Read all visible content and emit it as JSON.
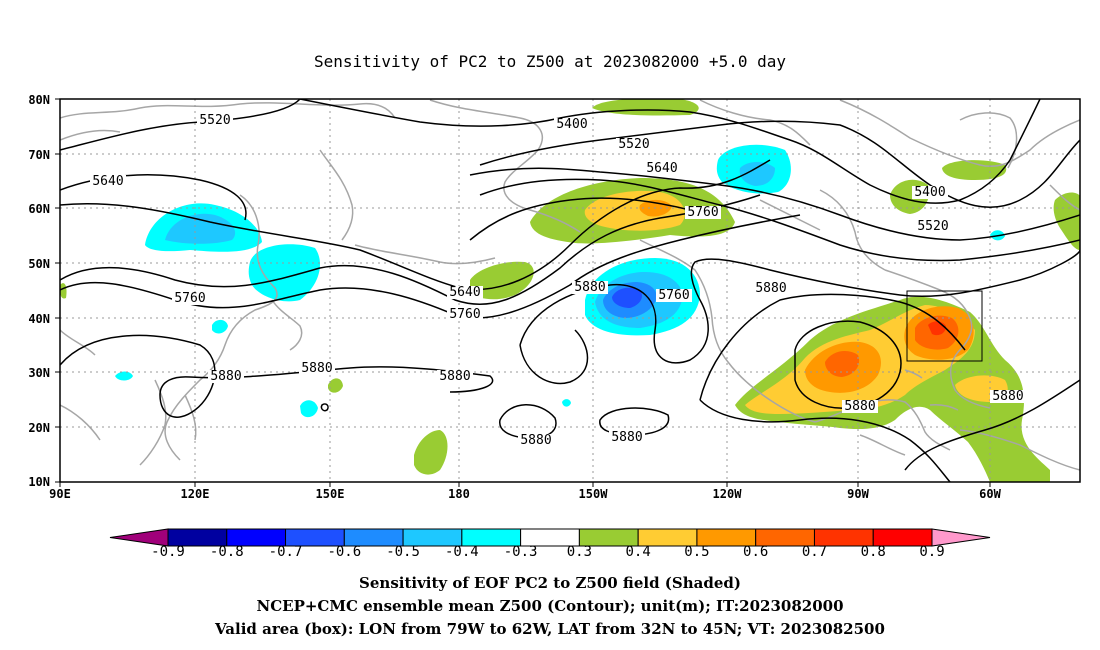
{
  "title": "Sensitivity of PC2 to Z500 at 2023082000 +5.0 day",
  "axes": {
    "lat_labels": [
      "80N",
      "70N",
      "60N",
      "50N",
      "40N",
      "30N",
      "20N",
      "10N"
    ],
    "lon_labels": [
      "90E",
      "120E",
      "150E",
      "180",
      "150W",
      "120W",
      "90W",
      "60W"
    ]
  },
  "contour_labels": [
    "5520",
    "5400",
    "5520",
    "5640",
    "5640",
    "5760",
    "5400",
    "5520",
    "5760",
    "5640",
    "5760",
    "5880",
    "5760",
    "5880",
    "5880",
    "5880",
    "5880",
    "5880",
    "5880",
    "5880",
    "5880"
  ],
  "colorbar": {
    "levels": [
      "-0.9",
      "-0.8",
      "-0.7",
      "-0.6",
      "-0.5",
      "-0.4",
      "-0.3",
      "0.3",
      "0.4",
      "0.5",
      "0.6",
      "0.7",
      "0.8",
      "0.9"
    ],
    "colors": [
      "#a0007a",
      "#0000a0",
      "#0000ff",
      "#1e50ff",
      "#1e8cff",
      "#1ec8ff",
      "#00ffff",
      "#ffffff",
      "#99cc33",
      "#ffcc33",
      "#ff9900",
      "#ff6600",
      "#ff3300",
      "#ff0000",
      "#ff99cc"
    ]
  },
  "captions": [
    "Sensitivity of EOF PC2 to Z500 field (Shaded)",
    "NCEP+CMC ensemble mean Z500 (Contour); unit(m); IT:2023082000",
    "Valid area (box): LON from 79W to 62W, LAT from 32N to 45N; VT: 2023082500"
  ],
  "colors": {
    "land": "#a6a6a6",
    "contour": "#000000",
    "grid": "#999999"
  }
}
